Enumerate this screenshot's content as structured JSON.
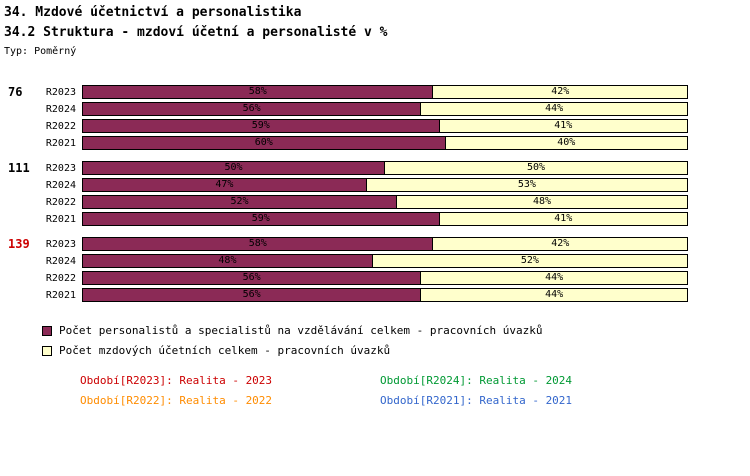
{
  "header": {
    "title": "34. Mzdové účetnictví a personalistika",
    "subtitle": "34.2 Struktura - mzdoví účetní a personalisté v %",
    "type_label": "Typ: Poměrný"
  },
  "chart_data": {
    "type": "bar",
    "orientation": "horizontal",
    "stacked": true,
    "unit": "%",
    "xlim": [
      0,
      100
    ],
    "grid": false,
    "series": [
      {
        "name": "Počet personalistů a specialistů na vzdělávání celkem - pracovních úvazků",
        "color": "#8B2A56"
      },
      {
        "name": "Počet mzdových účetních celkem - pracovních úvazků",
        "color": "#FFFFCC"
      }
    ],
    "groups": [
      {
        "label": "76",
        "label_color": "#000000",
        "rows": [
          {
            "period": "R2023",
            "values": [
              58,
              42
            ]
          },
          {
            "period": "R2024",
            "values": [
              56,
              44
            ]
          },
          {
            "period": "R2022",
            "values": [
              59,
              41
            ]
          },
          {
            "period": "R2021",
            "values": [
              60,
              40
            ]
          }
        ]
      },
      {
        "label": "111",
        "label_color": "#000000",
        "rows": [
          {
            "period": "R2023",
            "values": [
              50,
              50
            ]
          },
          {
            "period": "R2024",
            "values": [
              47,
              53
            ]
          },
          {
            "period": "R2022",
            "values": [
              52,
              48
            ]
          },
          {
            "period": "R2021",
            "values": [
              59,
              41
            ]
          }
        ]
      },
      {
        "label": "139",
        "label_color": "#CC0000",
        "rows": [
          {
            "period": "R2023",
            "values": [
              58,
              42
            ]
          },
          {
            "period": "R2024",
            "values": [
              48,
              52
            ]
          },
          {
            "period": "R2022",
            "values": [
              56,
              44
            ]
          },
          {
            "period": "R2021",
            "values": [
              56,
              44
            ]
          }
        ]
      }
    ]
  },
  "legend": [
    {
      "label": "Počet personalistů a specialistů na vzdělávání celkem - pracovních úvazků",
      "color": "#8B2A56"
    },
    {
      "label": "Počet mzdových účetních celkem - pracovních úvazků",
      "color": "#FFFFCC"
    }
  ],
  "periods": [
    {
      "label": "Období[R2023]: Realita - 2023",
      "color": "#CC0000"
    },
    {
      "label": "Období[R2024]: Realita - 2024",
      "color": "#009933"
    },
    {
      "label": "Období[R2022]: Realita - 2022",
      "color": "#FF8C00"
    },
    {
      "label": "Období[R2021]: Realita - 2021",
      "color": "#3366CC"
    }
  ]
}
